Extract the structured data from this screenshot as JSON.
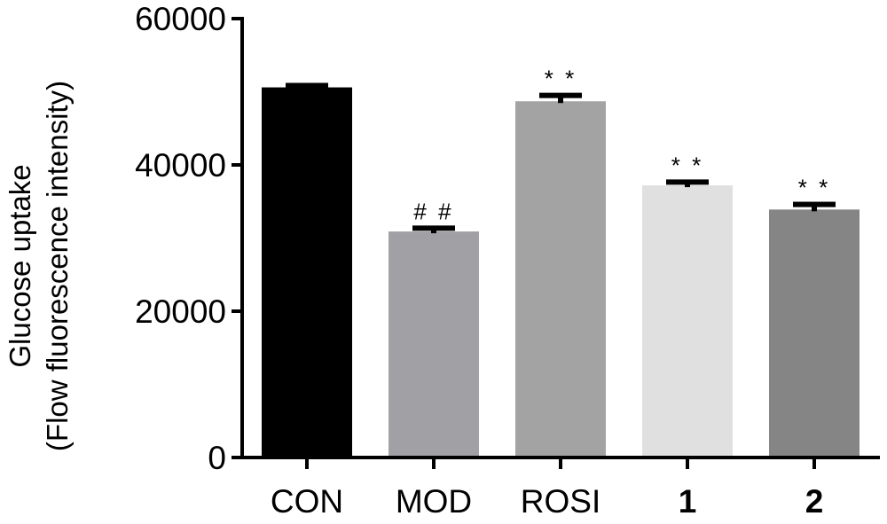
{
  "chart_data": {
    "type": "bar",
    "title": "",
    "xlabel": "",
    "ylabel": [
      "Glucose uptake",
      "(Flow fluorescence intensity)"
    ],
    "ylim": [
      0,
      60000
    ],
    "yticks": [
      0,
      20000,
      40000,
      60000
    ],
    "ytick_labels": [
      "0",
      "20000",
      "40000",
      "60000"
    ],
    "categories": [
      "CON",
      "MOD",
      "ROSI",
      "1",
      "2"
    ],
    "bold_categories": [
      "1",
      "2"
    ],
    "values": [
      50600,
      30900,
      48700,
      37200,
      33900
    ],
    "errors": [
      250,
      450,
      800,
      450,
      700
    ],
    "colors": [
      "#000000",
      "#a1a1a5",
      "#a3a3a3",
      "#e0e0e0",
      "#858585"
    ],
    "annotations": [
      "",
      "##",
      "**",
      "**",
      "**"
    ],
    "grid": false,
    "legend": "none"
  }
}
